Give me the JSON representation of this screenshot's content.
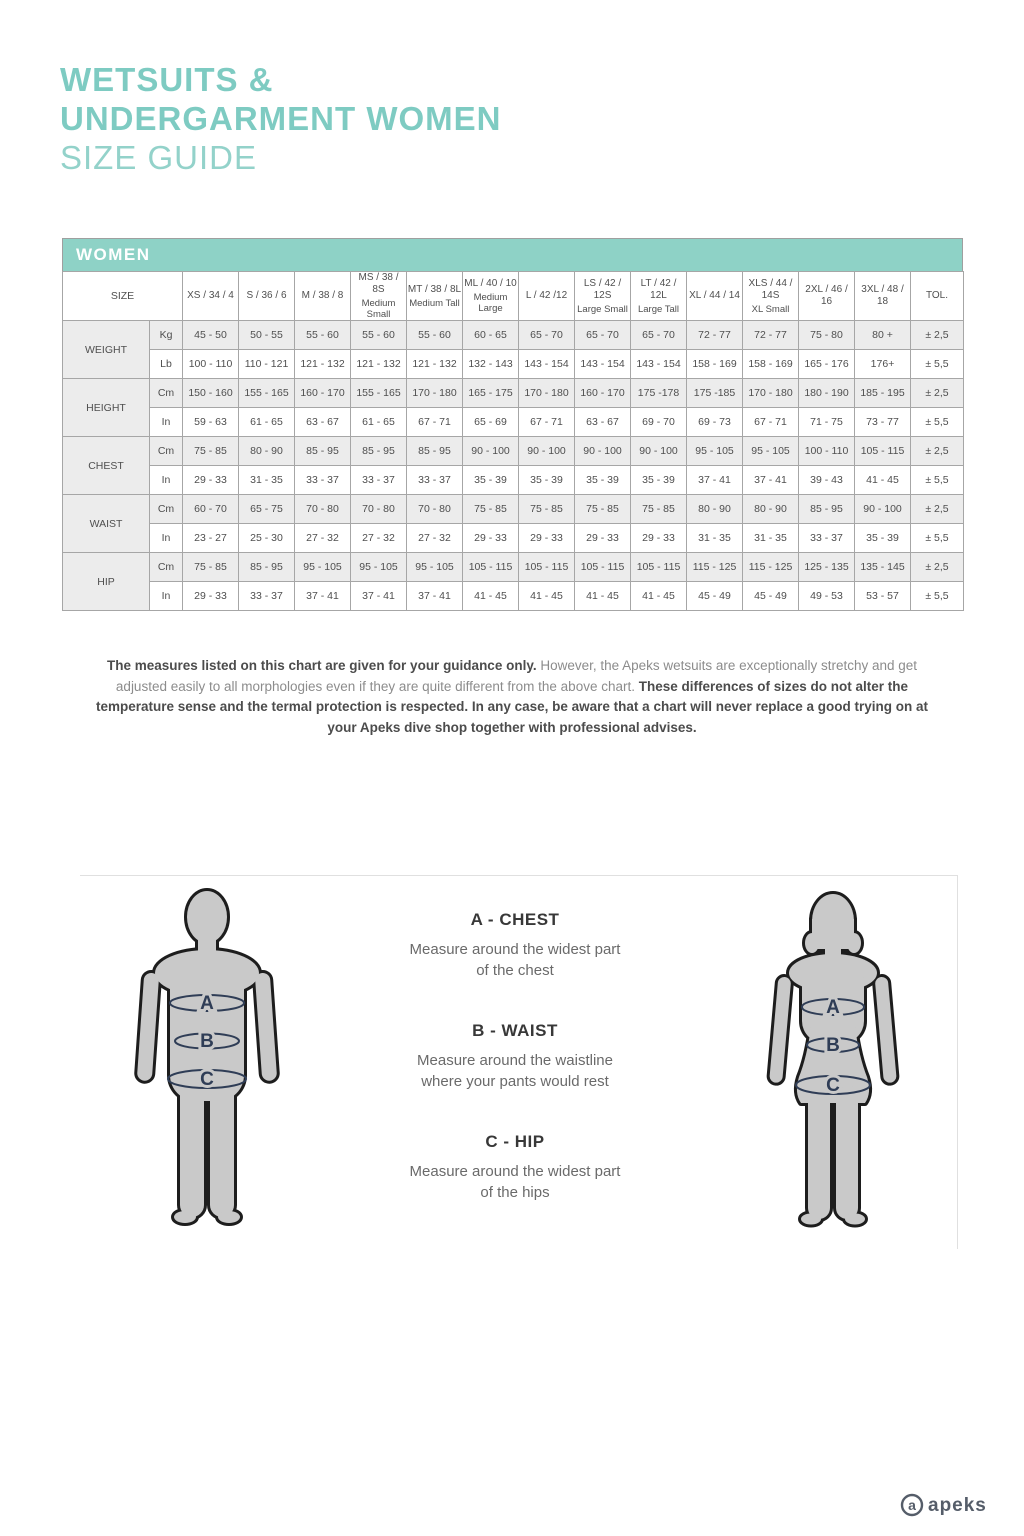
{
  "header": {
    "title_line1": "WETSUITS &",
    "title_line2": "UNDERGARMENT WOMEN",
    "title_line3": "SIZE GUIDE",
    "accent_color": "#7ecbc2"
  },
  "table": {
    "banner": "WOMEN",
    "banner_color": "#8ed2c6",
    "size_label": "SIZE",
    "columns": [
      {
        "code": "XS / 34 / 4",
        "sub": ""
      },
      {
        "code": "S / 36 / 6",
        "sub": ""
      },
      {
        "code": "M / 38 / 8",
        "sub": ""
      },
      {
        "code": "MS / 38 / 8S",
        "sub": "Medium Small"
      },
      {
        "code": "MT / 38 / 8L",
        "sub": "Medium Tall"
      },
      {
        "code": "ML / 40 / 10",
        "sub": "Medium Large"
      },
      {
        "code": "L / 42 /12",
        "sub": ""
      },
      {
        "code": "LS / 42 / 12S",
        "sub": "Large Small"
      },
      {
        "code": "LT / 42 / 12L",
        "sub": "Large Tall"
      },
      {
        "code": "XL / 44 / 14",
        "sub": ""
      },
      {
        "code": "XLS / 44 / 14S",
        "sub": "XL Small"
      },
      {
        "code": "2XL / 46 / 16",
        "sub": ""
      },
      {
        "code": "3XL / 48 / 18",
        "sub": ""
      },
      {
        "code": "TOL.",
        "sub": ""
      }
    ],
    "rows": [
      {
        "label": "WEIGHT",
        "units": [
          {
            "unit": "Kg",
            "values": [
              "45 - 50",
              "50 - 55",
              "55 - 60",
              "55 - 60",
              "55 - 60",
              "60 - 65",
              "65 - 70",
              "65 - 70",
              "65 - 70",
              "72 - 77",
              "72 - 77",
              "75 - 80",
              "80 +",
              "± 2,5"
            ]
          },
          {
            "unit": "Lb",
            "values": [
              "100 - 110",
              "110 - 121",
              "121 - 132",
              "121 - 132",
              "121 - 132",
              "132 - 143",
              "143 - 154",
              "143 - 154",
              "143 - 154",
              "158 - 169",
              "158 - 169",
              "165 - 176",
              "176+",
              "± 5,5"
            ]
          }
        ]
      },
      {
        "label": "HEIGHT",
        "units": [
          {
            "unit": "Cm",
            "values": [
              "150 - 160",
              "155 - 165",
              "160 - 170",
              "155 - 165",
              "170 - 180",
              "165 - 175",
              "170 - 180",
              "160 - 170",
              "175 -178",
              "175 -185",
              "170 - 180",
              "180 - 190",
              "185 - 195",
              "± 2,5"
            ]
          },
          {
            "unit": "In",
            "values": [
              "59 - 63",
              "61 - 65",
              "63 - 67",
              "61 - 65",
              "67 - 71",
              "65 - 69",
              "67 - 71",
              "63 - 67",
              "69 - 70",
              "69 - 73",
              "67 - 71",
              "71 - 75",
              "73 - 77",
              "± 5,5"
            ]
          }
        ]
      },
      {
        "label": "CHEST",
        "units": [
          {
            "unit": "Cm",
            "values": [
              "75 - 85",
              "80 - 90",
              "85 - 95",
              "85 - 95",
              "85 - 95",
              "90 - 100",
              "90 - 100",
              "90 - 100",
              "90 - 100",
              "95 - 105",
              "95 - 105",
              "100 - 110",
              "105 - 115",
              "± 2,5"
            ]
          },
          {
            "unit": "In",
            "values": [
              "29 - 33",
              "31 - 35",
              "33 - 37",
              "33 - 37",
              "33 - 37",
              "35 - 39",
              "35 - 39",
              "35 - 39",
              "35 - 39",
              "37 - 41",
              "37 - 41",
              "39 - 43",
              "41 - 45",
              "± 5,5"
            ]
          }
        ]
      },
      {
        "label": "WAIST",
        "units": [
          {
            "unit": "Cm",
            "values": [
              "60 - 70",
              "65 - 75",
              "70 - 80",
              "70 - 80",
              "70 - 80",
              "75 - 85",
              "75 - 85",
              "75 - 85",
              "75 - 85",
              "80 - 90",
              "80 - 90",
              "85 - 95",
              "90 - 100",
              "± 2,5"
            ]
          },
          {
            "unit": "In",
            "values": [
              "23 - 27",
              "25 - 30",
              "27 - 32",
              "27 - 32",
              "27 - 32",
              "29 - 33",
              "29 - 33",
              "29 - 33",
              "29 - 33",
              "31 - 35",
              "31 - 35",
              "33 - 37",
              "35 - 39",
              "± 5,5"
            ]
          }
        ]
      },
      {
        "label": "HIP",
        "units": [
          {
            "unit": "Cm",
            "values": [
              "75 - 85",
              "85 - 95",
              "95 - 105",
              "95 - 105",
              "95 - 105",
              "105 - 115",
              "105 - 115",
              "105 - 115",
              "105 - 115",
              "115 - 125",
              "115 - 125",
              "125 - 135",
              "135 - 145",
              "± 2,5"
            ]
          },
          {
            "unit": "In",
            "values": [
              "29 - 33",
              "33 - 37",
              "37 - 41",
              "37 - 41",
              "37 - 41",
              "41 - 45",
              "41 - 45",
              "41 - 45",
              "41 - 45",
              "45 - 49",
              "45 - 49",
              "49 - 53",
              "53 - 57",
              "± 5,5"
            ]
          }
        ]
      }
    ]
  },
  "note": {
    "segments": [
      {
        "bold": true,
        "text": "The measures listed on this chart are given for your guidance only."
      },
      {
        "bold": false,
        "text": " However, the Apeks wetsuits are exceptionally stretchy and get adjusted easily to all morphologies even if they are quite different from the above chart."
      },
      {
        "bold": true,
        "text": " These differences of sizes do not alter the temperature sense and the termal protection is respected. In any case, be aware that a chart will never replace a good trying on at your Apeks dive shop together with professional advises."
      }
    ]
  },
  "guide": {
    "band_labels": [
      "A",
      "B",
      "C"
    ],
    "items": [
      {
        "title": "A - CHEST",
        "desc": "Measure around the widest part\nof the chest"
      },
      {
        "title": "B - WAIST",
        "desc": "Measure around the waistline\nwhere your pants would rest"
      },
      {
        "title": "C - HIP",
        "desc": "Measure around the widest part\nof the hips"
      }
    ]
  },
  "footer": {
    "logo_text": "apeks",
    "logo_mark": "a"
  }
}
